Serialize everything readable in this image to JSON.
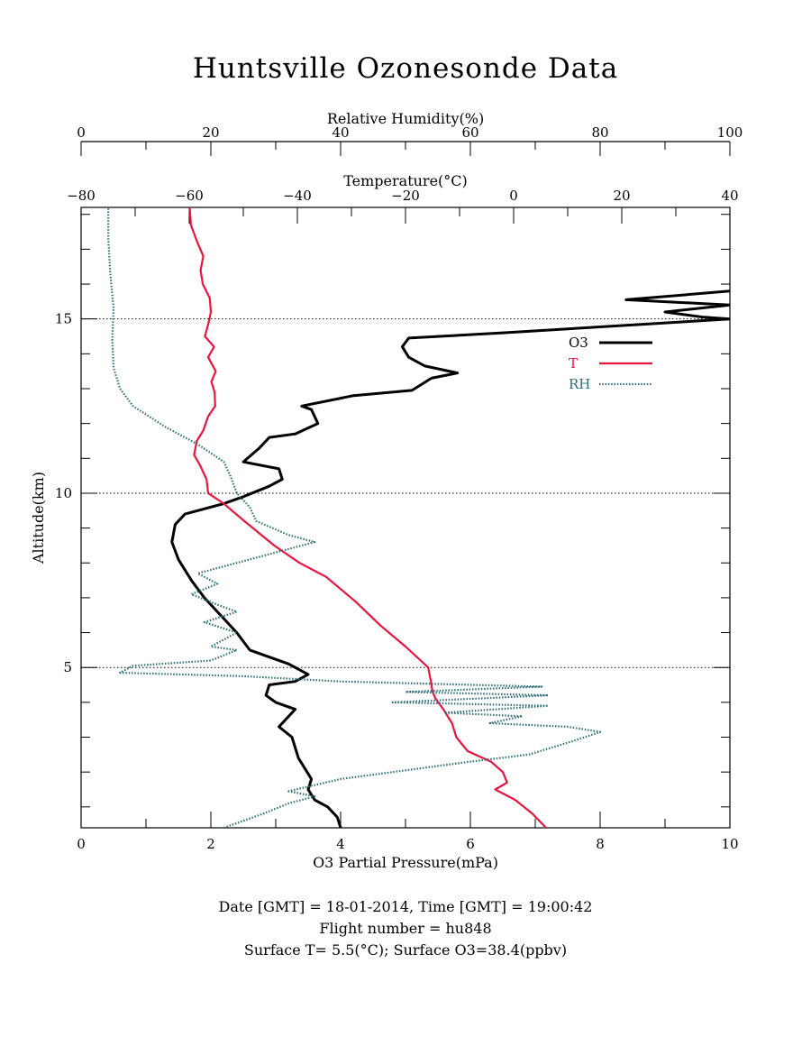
{
  "title": "Huntsville Ozonesonde Data",
  "footer": {
    "line1": "Date [GMT] = 18-01-2014,  Time [GMT] = 19:00:42",
    "line2": "Flight number = hu848",
    "line3": "Surface T= 5.5(°C); Surface O3=38.4(ppbv)"
  },
  "chart_data": {
    "type": "line",
    "title": "Huntsville Ozonesonde Data",
    "ylabel": "Altitude(km)",
    "ylim": [
      0.4,
      18.2
    ],
    "yticks": [
      5,
      10,
      15
    ],
    "gridlines_y": [
      5,
      10,
      15
    ],
    "axes": {
      "o3": {
        "label": "O3 Partial Pressure(mPa)",
        "range": [
          0,
          10
        ],
        "ticks": [
          0,
          2,
          4,
          6,
          8,
          10
        ],
        "position": "bottom"
      },
      "temperature": {
        "label": "Temperature(°C)",
        "range": [
          -80,
          40
        ],
        "ticks": [
          -80,
          -60,
          -40,
          -20,
          0,
          20,
          40
        ],
        "position": "top-inner"
      },
      "rh": {
        "label": "Relative Humidity(%)",
        "range": [
          0,
          100
        ],
        "ticks": [
          0,
          20,
          40,
          60,
          80,
          100
        ],
        "position": "top-outer"
      }
    },
    "legend": {
      "placement": "top-right",
      "entries": [
        "O3",
        "T",
        "RH"
      ]
    },
    "series": [
      {
        "name": "O3",
        "axis": "o3",
        "color": "#000000",
        "style": "solid",
        "points": [
          [
            4.0,
            0.4
          ],
          [
            3.95,
            0.7
          ],
          [
            3.8,
            1.0
          ],
          [
            3.6,
            1.2
          ],
          [
            3.5,
            1.5
          ],
          [
            3.55,
            1.8
          ],
          [
            3.45,
            2.1
          ],
          [
            3.35,
            2.4
          ],
          [
            3.3,
            2.7
          ],
          [
            3.25,
            3.0
          ],
          [
            3.05,
            3.3
          ],
          [
            3.15,
            3.5
          ],
          [
            3.3,
            3.8
          ],
          [
            3.0,
            4.0
          ],
          [
            2.85,
            4.2
          ],
          [
            2.9,
            4.5
          ],
          [
            3.3,
            4.6
          ],
          [
            3.5,
            4.8
          ],
          [
            3.2,
            5.1
          ],
          [
            2.6,
            5.5
          ],
          [
            2.4,
            6.0
          ],
          [
            2.1,
            6.6
          ],
          [
            1.9,
            7.0
          ],
          [
            1.7,
            7.5
          ],
          [
            1.5,
            8.1
          ],
          [
            1.4,
            8.6
          ],
          [
            1.45,
            9.1
          ],
          [
            1.6,
            9.4
          ],
          [
            2.2,
            9.7
          ],
          [
            2.5,
            9.9
          ],
          [
            2.9,
            10.2
          ],
          [
            3.1,
            10.4
          ],
          [
            3.05,
            10.7
          ],
          [
            2.5,
            10.9
          ],
          [
            2.75,
            11.3
          ],
          [
            2.9,
            11.6
          ],
          [
            3.3,
            11.7
          ],
          [
            3.65,
            12.0
          ],
          [
            3.55,
            12.4
          ],
          [
            3.4,
            12.5
          ],
          [
            4.2,
            12.8
          ],
          [
            5.1,
            12.95
          ],
          [
            5.4,
            13.3
          ],
          [
            5.8,
            13.45
          ],
          [
            5.3,
            13.65
          ],
          [
            5.05,
            13.9
          ],
          [
            4.95,
            14.2
          ],
          [
            5.05,
            14.45
          ],
          [
            6.5,
            14.6
          ],
          [
            10.0,
            15.0
          ],
          [
            9.6,
            15.05
          ],
          [
            9.0,
            15.2
          ],
          [
            10.0,
            15.4
          ],
          [
            8.4,
            15.55
          ],
          [
            10.0,
            15.8
          ]
        ]
      },
      {
        "name": "T",
        "axis": "temperature",
        "color": "#e8153f",
        "style": "dash-dot",
        "points": [
          [
            6.0,
            0.4
          ],
          [
            3.5,
            0.8
          ],
          [
            0.3,
            1.2
          ],
          [
            -3.4,
            1.5
          ],
          [
            -1.2,
            1.7
          ],
          [
            -2.0,
            2.0
          ],
          [
            -4.2,
            2.3
          ],
          [
            -8.5,
            2.6
          ],
          [
            -10.6,
            3.0
          ],
          [
            -11.4,
            3.4
          ],
          [
            -13.0,
            3.8
          ],
          [
            -14.4,
            4.1
          ],
          [
            -15.0,
            4.3
          ],
          [
            -15.3,
            4.6
          ],
          [
            -15.8,
            5.0
          ],
          [
            -20.0,
            5.6
          ],
          [
            -24.6,
            6.2
          ],
          [
            -29.3,
            6.9
          ],
          [
            -34.7,
            7.6
          ],
          [
            -39.6,
            8.0
          ],
          [
            -44.3,
            8.5
          ],
          [
            -49.8,
            9.2
          ],
          [
            -53.6,
            9.7
          ],
          [
            -56.5,
            10.0
          ],
          [
            -56.8,
            10.4
          ],
          [
            -58.0,
            10.8
          ],
          [
            -59.1,
            11.1
          ],
          [
            -58.6,
            11.5
          ],
          [
            -57.4,
            11.8
          ],
          [
            -56.5,
            12.2
          ],
          [
            -55.2,
            12.5
          ],
          [
            -55.3,
            12.9
          ],
          [
            -55.9,
            13.2
          ],
          [
            -55.1,
            13.5
          ],
          [
            -56.5,
            13.9
          ],
          [
            -55.4,
            14.2
          ],
          [
            -57.1,
            14.5
          ],
          [
            -56.4,
            14.9
          ],
          [
            -56.0,
            15.2
          ],
          [
            -56.2,
            15.6
          ],
          [
            -57.5,
            16.0
          ],
          [
            -57.9,
            16.4
          ],
          [
            -57.4,
            16.8
          ],
          [
            -58.5,
            17.2
          ],
          [
            -59.7,
            17.7
          ],
          [
            -59.9,
            18.2
          ]
        ]
      },
      {
        "name": "RH",
        "axis": "rh",
        "color": "#2e6f78",
        "style": "dotted",
        "points": [
          [
            22,
            0.4
          ],
          [
            28,
            0.8
          ],
          [
            32,
            1.1
          ],
          [
            36,
            1.3
          ],
          [
            32,
            1.45
          ],
          [
            40,
            1.8
          ],
          [
            48,
            2.0
          ],
          [
            60,
            2.3
          ],
          [
            69,
            2.5
          ],
          [
            76,
            2.9
          ],
          [
            80,
            3.15
          ],
          [
            75,
            3.3
          ],
          [
            63,
            3.4
          ],
          [
            68,
            3.6
          ],
          [
            56,
            3.7
          ],
          [
            72,
            3.9
          ],
          [
            48,
            4.0
          ],
          [
            72,
            4.2
          ],
          [
            50,
            4.3
          ],
          [
            71,
            4.45
          ],
          [
            40,
            4.6
          ],
          [
            25,
            4.75
          ],
          [
            6,
            4.85
          ],
          [
            8,
            5.05
          ],
          [
            20,
            5.2
          ],
          [
            24,
            5.5
          ],
          [
            20,
            5.6
          ],
          [
            24,
            6.0
          ],
          [
            19,
            6.3
          ],
          [
            24,
            6.6
          ],
          [
            21,
            6.8
          ],
          [
            17,
            7.1
          ],
          [
            21,
            7.4
          ],
          [
            18,
            7.7
          ],
          [
            28,
            8.2
          ],
          [
            36,
            8.6
          ],
          [
            32,
            8.8
          ],
          [
            27,
            9.2
          ],
          [
            26,
            9.6
          ],
          [
            24,
            10.0
          ],
          [
            23,
            10.5
          ],
          [
            22,
            10.9
          ],
          [
            18,
            11.4
          ],
          [
            13,
            11.9
          ],
          [
            8,
            12.5
          ],
          [
            6,
            13.0
          ],
          [
            5,
            13.6
          ],
          [
            4.8,
            14.4
          ],
          [
            5,
            15.3
          ],
          [
            4.5,
            16.3
          ],
          [
            4.2,
            17.3
          ],
          [
            4.2,
            18.2
          ]
        ]
      }
    ]
  }
}
